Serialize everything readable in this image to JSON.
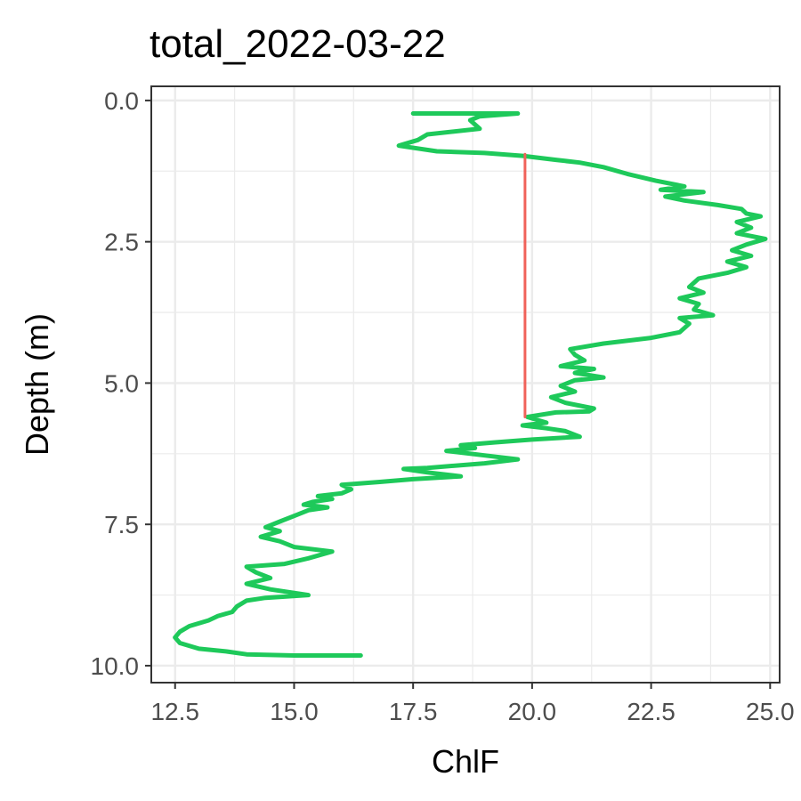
{
  "chart_data": {
    "type": "line",
    "title": "total_2022-03-22",
    "xlabel": "ChlF",
    "ylabel": "Depth (m)",
    "xlim": [
      12,
      25.2
    ],
    "ylim": [
      -0.25,
      10.3
    ],
    "y_reversed": true,
    "x_ticks": [
      12.5,
      15.0,
      17.5,
      20.0,
      22.5,
      25.0
    ],
    "x_tick_labels": [
      "12.5",
      "15.0",
      "17.5",
      "20.0",
      "22.5",
      "25.0"
    ],
    "y_ticks": [
      0.0,
      2.5,
      5.0,
      7.5,
      10.0
    ],
    "y_tick_labels": [
      "0.0",
      "2.5",
      "5.0",
      "7.5",
      "10.0"
    ],
    "grid": true,
    "colors": {
      "profile": "#1ec95a",
      "marker": "#f0625a",
      "background": "#ffffff",
      "grid": "#ebebeb",
      "border": "#333333"
    },
    "series": [
      {
        "values": [
          [
            17.5,
            0.23
          ],
          [
            19.7,
            0.23
          ],
          [
            18.9,
            0.28
          ],
          [
            18.7,
            0.35
          ],
          [
            18.9,
            0.5
          ],
          [
            17.8,
            0.6
          ],
          [
            17.6,
            0.7
          ],
          [
            17.2,
            0.8
          ],
          [
            18.0,
            0.9
          ],
          [
            19.0,
            0.93
          ],
          [
            19.8,
            0.98
          ],
          [
            20.5,
            1.05
          ],
          [
            21.0,
            1.1
          ],
          [
            21.5,
            1.18
          ],
          [
            22.0,
            1.3
          ],
          [
            22.6,
            1.42
          ],
          [
            23.2,
            1.52
          ],
          [
            22.7,
            1.58
          ],
          [
            23.6,
            1.62
          ],
          [
            22.8,
            1.7
          ],
          [
            23.2,
            1.77
          ],
          [
            23.9,
            1.85
          ],
          [
            24.4,
            1.92
          ],
          [
            24.5,
            2.0
          ],
          [
            24.8,
            2.05
          ],
          [
            24.3,
            2.15
          ],
          [
            24.6,
            2.25
          ],
          [
            24.3,
            2.35
          ],
          [
            24.9,
            2.45
          ],
          [
            24.5,
            2.55
          ],
          [
            24.2,
            2.65
          ],
          [
            24.6,
            2.75
          ],
          [
            24.1,
            2.85
          ],
          [
            24.5,
            2.95
          ],
          [
            24.1,
            3.05
          ],
          [
            23.5,
            3.15
          ],
          [
            23.3,
            3.3
          ],
          [
            23.6,
            3.4
          ],
          [
            23.1,
            3.5
          ],
          [
            23.5,
            3.6
          ],
          [
            23.4,
            3.7
          ],
          [
            23.8,
            3.8
          ],
          [
            23.1,
            3.85
          ],
          [
            23.3,
            3.95
          ],
          [
            23.1,
            4.1
          ],
          [
            22.5,
            4.2
          ],
          [
            21.5,
            4.3
          ],
          [
            20.8,
            4.4
          ],
          [
            20.9,
            4.5
          ],
          [
            21.1,
            4.6
          ],
          [
            20.6,
            4.7
          ],
          [
            21.3,
            4.75
          ],
          [
            20.9,
            4.82
          ],
          [
            21.5,
            4.9
          ],
          [
            20.9,
            4.95
          ],
          [
            20.6,
            5.05
          ],
          [
            20.9,
            5.15
          ],
          [
            20.4,
            5.25
          ],
          [
            20.7,
            5.35
          ],
          [
            21.3,
            5.45
          ],
          [
            21.2,
            5.5
          ],
          [
            20.5,
            5.52
          ],
          [
            19.9,
            5.6
          ],
          [
            20.3,
            5.7
          ],
          [
            19.8,
            5.75
          ],
          [
            20.3,
            5.8
          ],
          [
            20.7,
            5.85
          ],
          [
            21.0,
            5.95
          ],
          [
            20.0,
            6.0
          ],
          [
            19.2,
            6.05
          ],
          [
            18.5,
            6.1
          ],
          [
            18.8,
            6.15
          ],
          [
            18.2,
            6.2
          ],
          [
            19.0,
            6.28
          ],
          [
            19.7,
            6.35
          ],
          [
            19.0,
            6.42
          ],
          [
            17.8,
            6.5
          ],
          [
            17.3,
            6.52
          ],
          [
            17.8,
            6.58
          ],
          [
            18.5,
            6.65
          ],
          [
            17.5,
            6.7
          ],
          [
            16.8,
            6.75
          ],
          [
            16.0,
            6.8
          ],
          [
            16.2,
            6.88
          ],
          [
            16.0,
            6.95
          ],
          [
            15.5,
            7.0
          ],
          [
            15.8,
            7.05
          ],
          [
            15.4,
            7.1
          ],
          [
            15.2,
            7.15
          ],
          [
            15.7,
            7.2
          ],
          [
            15.3,
            7.25
          ],
          [
            15.0,
            7.35
          ],
          [
            14.7,
            7.45
          ],
          [
            14.4,
            7.55
          ],
          [
            14.7,
            7.62
          ],
          [
            14.3,
            7.72
          ],
          [
            14.7,
            7.8
          ],
          [
            15.0,
            7.9
          ],
          [
            15.8,
            7.98
          ],
          [
            15.3,
            8.1
          ],
          [
            14.8,
            8.2
          ],
          [
            14.0,
            8.25
          ],
          [
            14.2,
            8.35
          ],
          [
            14.5,
            8.45
          ],
          [
            14.0,
            8.55
          ],
          [
            14.5,
            8.65
          ],
          [
            15.3,
            8.75
          ],
          [
            14.4,
            8.8
          ],
          [
            14.0,
            8.85
          ],
          [
            13.8,
            8.95
          ],
          [
            13.7,
            9.05
          ],
          [
            13.4,
            9.12
          ],
          [
            13.2,
            9.2
          ],
          [
            12.8,
            9.3
          ],
          [
            12.6,
            9.4
          ],
          [
            12.5,
            9.5
          ],
          [
            12.6,
            9.6
          ],
          [
            13.0,
            9.7
          ],
          [
            13.6,
            9.75
          ],
          [
            14.0,
            9.8
          ],
          [
            15.0,
            9.82
          ],
          [
            16.4,
            9.82
          ]
        ]
      },
      {
        "values": [
          [
            19.85,
            0.95
          ],
          [
            19.85,
            5.6
          ]
        ]
      }
    ]
  }
}
